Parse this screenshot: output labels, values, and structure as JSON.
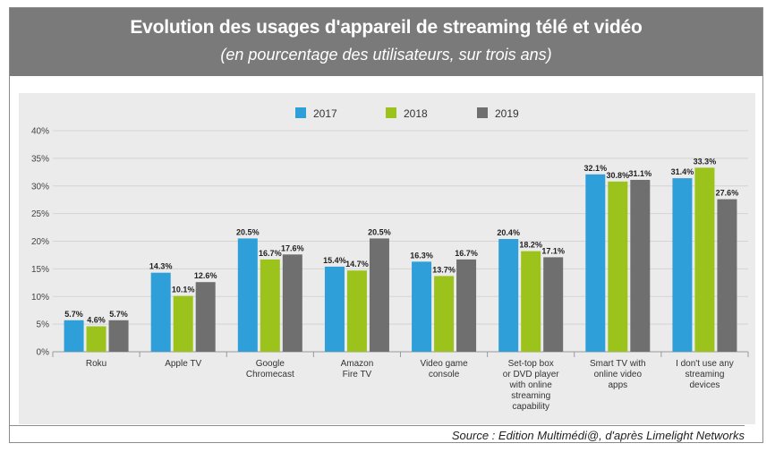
{
  "header": {
    "title": "Evolution des usages d'appareil de streaming télé et vidéo",
    "subtitle": "(en pourcentage des utilisateurs, sur trois ans)"
  },
  "source": {
    "prefix": "Source : ",
    "publisher": "Edition Multimédi@",
    "middle": ", d'après ",
    "origin": "Limelight Networks"
  },
  "chart_data": {
    "type": "bar",
    "title": "",
    "xlabel": "",
    "ylabel": "",
    "ylim": [
      0,
      40
    ],
    "yticks": [
      "0%",
      "5%",
      "10%",
      "15%",
      "20%",
      "25%",
      "30%",
      "35%",
      "40%"
    ],
    "grid": true,
    "legend": "top-center",
    "categories": [
      [
        "Roku"
      ],
      [
        "Apple TV"
      ],
      [
        "Google",
        "Chromecast"
      ],
      [
        "Amazon",
        "Fire TV"
      ],
      [
        "Video game",
        "console"
      ],
      [
        "Set-top box",
        "or DVD player",
        "with online",
        "streaming",
        "capability"
      ],
      [
        "Smart TV with",
        "online video",
        "apps"
      ],
      [
        "I don't use any",
        "streaming",
        "devices"
      ]
    ],
    "series": [
      {
        "name": "2017",
        "color": "#2e9fd8",
        "values": [
          5.7,
          14.3,
          20.5,
          15.4,
          16.3,
          20.4,
          32.1,
          31.4
        ],
        "labels": [
          "5.7%",
          "14.3%",
          "20.5%",
          "15.4%",
          "16.3%",
          "20.4%",
          "32.1%",
          "31.4%"
        ]
      },
      {
        "name": "2018",
        "color": "#9bc31c",
        "values": [
          4.6,
          10.1,
          16.7,
          14.7,
          13.7,
          18.2,
          30.8,
          33.3
        ],
        "labels": [
          "4.6%",
          "10.1%",
          "16.7%",
          "14.7%",
          "13.7%",
          "18.2%",
          "30.8%",
          "33.3%"
        ]
      },
      {
        "name": "2019",
        "color": "#6f6f6f",
        "values": [
          5.7,
          12.6,
          17.6,
          20.5,
          16.7,
          17.1,
          31.1,
          27.6
        ],
        "labels": [
          "5.7%",
          "12.6%",
          "17.6%",
          "20.5%",
          "16.7%",
          "17.1%",
          "31.1%",
          "27.6%"
        ]
      }
    ]
  }
}
